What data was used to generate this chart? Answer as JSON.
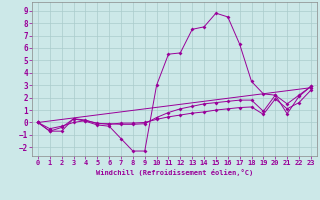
{
  "xlabel": "Windchill (Refroidissement éolien,°C)",
  "bg_color": "#cce8e8",
  "grid_color": "#aacccc",
  "line_color": "#990099",
  "xlim": [
    -0.5,
    23.5
  ],
  "ylim": [
    -2.7,
    9.7
  ],
  "xticks": [
    0,
    1,
    2,
    3,
    4,
    5,
    6,
    7,
    8,
    9,
    10,
    11,
    12,
    13,
    14,
    15,
    16,
    17,
    18,
    19,
    20,
    21,
    22,
    23
  ],
  "yticks": [
    -2,
    -1,
    0,
    1,
    2,
    3,
    4,
    5,
    6,
    7,
    8,
    9
  ],
  "curve1_x": [
    0,
    1,
    2,
    3,
    4,
    5,
    6,
    7,
    8,
    9,
    10,
    11,
    12,
    13,
    14,
    15,
    16,
    17,
    18,
    19,
    20,
    21,
    22,
    23
  ],
  "curve1_y": [
    0,
    -0.7,
    -0.7,
    0.3,
    0.1,
    -0.2,
    -0.3,
    -1.3,
    -2.3,
    -2.3,
    3.0,
    5.5,
    5.6,
    7.5,
    7.7,
    8.8,
    8.5,
    6.3,
    3.3,
    2.3,
    2.2,
    0.7,
    2.1,
    2.9
  ],
  "curve2_x": [
    0,
    1,
    2,
    3,
    4,
    5,
    6,
    7,
    8,
    9,
    10,
    11,
    12,
    13,
    14,
    15,
    16,
    17,
    18,
    19,
    20,
    21,
    22,
    23
  ],
  "curve2_y": [
    0,
    -0.7,
    -0.4,
    0.3,
    0.2,
    -0.1,
    -0.1,
    -0.15,
    -0.15,
    -0.1,
    0.4,
    0.8,
    1.1,
    1.3,
    1.5,
    1.6,
    1.7,
    1.8,
    1.8,
    0.9,
    2.2,
    1.5,
    2.2,
    2.9
  ],
  "curve3_x": [
    0,
    1,
    2,
    3,
    4,
    5,
    6,
    7,
    8,
    9,
    10,
    11,
    12,
    13,
    14,
    15,
    16,
    17,
    18,
    19,
    20,
    21,
    22,
    23
  ],
  "curve3_y": [
    0,
    -0.5,
    -0.3,
    0.0,
    0.15,
    -0.05,
    -0.15,
    -0.05,
    -0.05,
    0.0,
    0.25,
    0.45,
    0.6,
    0.75,
    0.85,
    1.0,
    1.1,
    1.2,
    1.25,
    0.65,
    1.9,
    1.1,
    1.6,
    2.6
  ],
  "curve4_x": [
    0,
    23
  ],
  "curve4_y": [
    0,
    2.8
  ]
}
